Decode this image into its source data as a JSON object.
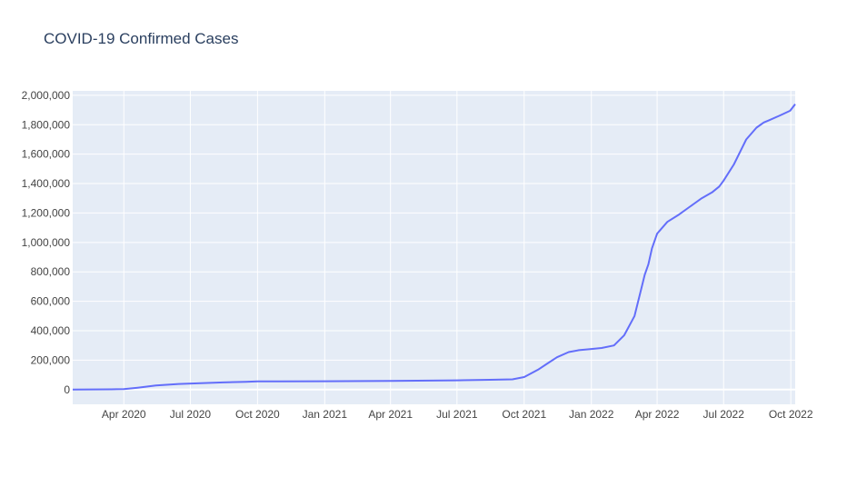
{
  "chart_data": {
    "type": "line",
    "title": "COVID-19 Confirmed Cases",
    "xlabel": "",
    "ylabel": "",
    "x_range": [
      "2020-01-22",
      "2022-10-07"
    ],
    "ylim": [
      -100000,
      2030000
    ],
    "grid": true,
    "legend": "none",
    "colors": {
      "line": "#636efa",
      "plot_bg": "#e5ecf6",
      "grid": "#ffffff",
      "tick_text": "#444444",
      "title": "#2a3f5f"
    },
    "x_ticks": [
      {
        "date": "2020-04-01",
        "label": "Apr 2020"
      },
      {
        "date": "2020-07-01",
        "label": "Jul 2020"
      },
      {
        "date": "2020-10-01",
        "label": "Oct 2020"
      },
      {
        "date": "2021-01-01",
        "label": "Jan 2021"
      },
      {
        "date": "2021-04-01",
        "label": "Apr 2021"
      },
      {
        "date": "2021-07-01",
        "label": "Jul 2021"
      },
      {
        "date": "2021-10-01",
        "label": "Oct 2021"
      },
      {
        "date": "2022-01-01",
        "label": "Jan 2022"
      },
      {
        "date": "2022-04-01",
        "label": "Apr 2022"
      },
      {
        "date": "2022-07-01",
        "label": "Jul 2022"
      },
      {
        "date": "2022-10-01",
        "label": "Oct 2022"
      }
    ],
    "y_ticks": [
      {
        "value": 0,
        "label": "0"
      },
      {
        "value": 200000,
        "label": "200,000"
      },
      {
        "value": 400000,
        "label": "400,000"
      },
      {
        "value": 600000,
        "label": "600,000"
      },
      {
        "value": 800000,
        "label": "800,000"
      },
      {
        "value": 1000000,
        "label": "1,000,000"
      },
      {
        "value": 1200000,
        "label": "1,200,000"
      },
      {
        "value": 1400000,
        "label": "1,400,000"
      },
      {
        "value": 1600000,
        "label": "1,600,000"
      },
      {
        "value": 1800000,
        "label": "1,800,000"
      },
      {
        "value": 2000000,
        "label": "2,000,000"
      }
    ],
    "series": [
      {
        "x": [
          "2020-01-22",
          "2020-03-15",
          "2020-04-01",
          "2020-04-20",
          "2020-05-15",
          "2020-06-15",
          "2020-07-15",
          "2020-08-15",
          "2020-09-15",
          "2020-10-01",
          "2020-11-01",
          "2021-01-01",
          "2021-04-01",
          "2021-07-01",
          "2021-08-15",
          "2021-09-15",
          "2021-10-01",
          "2021-10-20",
          "2021-11-01",
          "2021-11-15",
          "2021-12-01",
          "2021-12-15",
          "2022-01-01",
          "2022-01-15",
          "2022-02-01",
          "2022-02-15",
          "2022-03-01",
          "2022-03-10",
          "2022-03-15",
          "2022-03-20",
          "2022-03-25",
          "2022-04-01",
          "2022-04-15",
          "2022-05-01",
          "2022-05-15",
          "2022-06-01",
          "2022-06-15",
          "2022-06-25",
          "2022-07-01",
          "2022-07-15",
          "2022-07-25",
          "2022-08-01",
          "2022-08-15",
          "2022-08-25",
          "2022-09-01",
          "2022-09-15",
          "2022-09-30",
          "2022-10-07"
        ],
        "y": [
          0,
          2000,
          4000,
          13000,
          28000,
          38000,
          44000,
          49000,
          53000,
          56000,
          56000,
          57000,
          59000,
          63000,
          67000,
          70000,
          85000,
          135000,
          175000,
          220000,
          255000,
          268000,
          276000,
          283000,
          300000,
          370000,
          500000,
          680000,
          780000,
          850000,
          960000,
          1060000,
          1140000,
          1190000,
          1240000,
          1300000,
          1340000,
          1380000,
          1420000,
          1530000,
          1630000,
          1700000,
          1780000,
          1815000,
          1830000,
          1860000,
          1895000,
          1940000
        ]
      }
    ]
  }
}
